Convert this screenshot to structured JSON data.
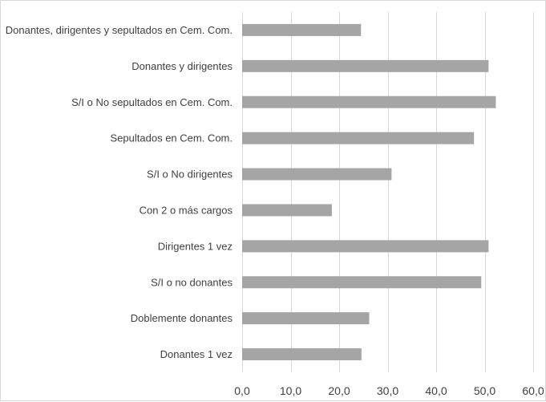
{
  "chart_data": {
    "type": "bar",
    "orientation": "horizontal",
    "title": "",
    "xlabel": "",
    "ylabel": "",
    "categories": [
      "Donantes, dirigentes y sepultados en Cem. Com.",
      "Donantes y dirigentes",
      "S/I o No sepultados en Cem. Com.",
      "Sepultados en Cem. Com.",
      "S/I o No dirigentes",
      "Con 2 o más cargos",
      "Dirigentes 1 vez",
      "S/I o no donantes",
      "Doblemente donantes",
      "Donantes 1 vez"
    ],
    "values": [
      24.5,
      50.8,
      52.3,
      47.8,
      30.8,
      18.5,
      50.8,
      49.3,
      26.2,
      24.6
    ],
    "xlim": [
      0,
      60
    ],
    "ticks": [
      "0,0",
      "10,0",
      "20,0",
      "30,0",
      "40,0",
      "50,0",
      "60,0"
    ],
    "grid": true,
    "legend": "none",
    "colors": {
      "bar": "#a5a5a5",
      "grid": "#d9d9d9",
      "text": "#404040",
      "border": "#d9d9d9"
    }
  }
}
